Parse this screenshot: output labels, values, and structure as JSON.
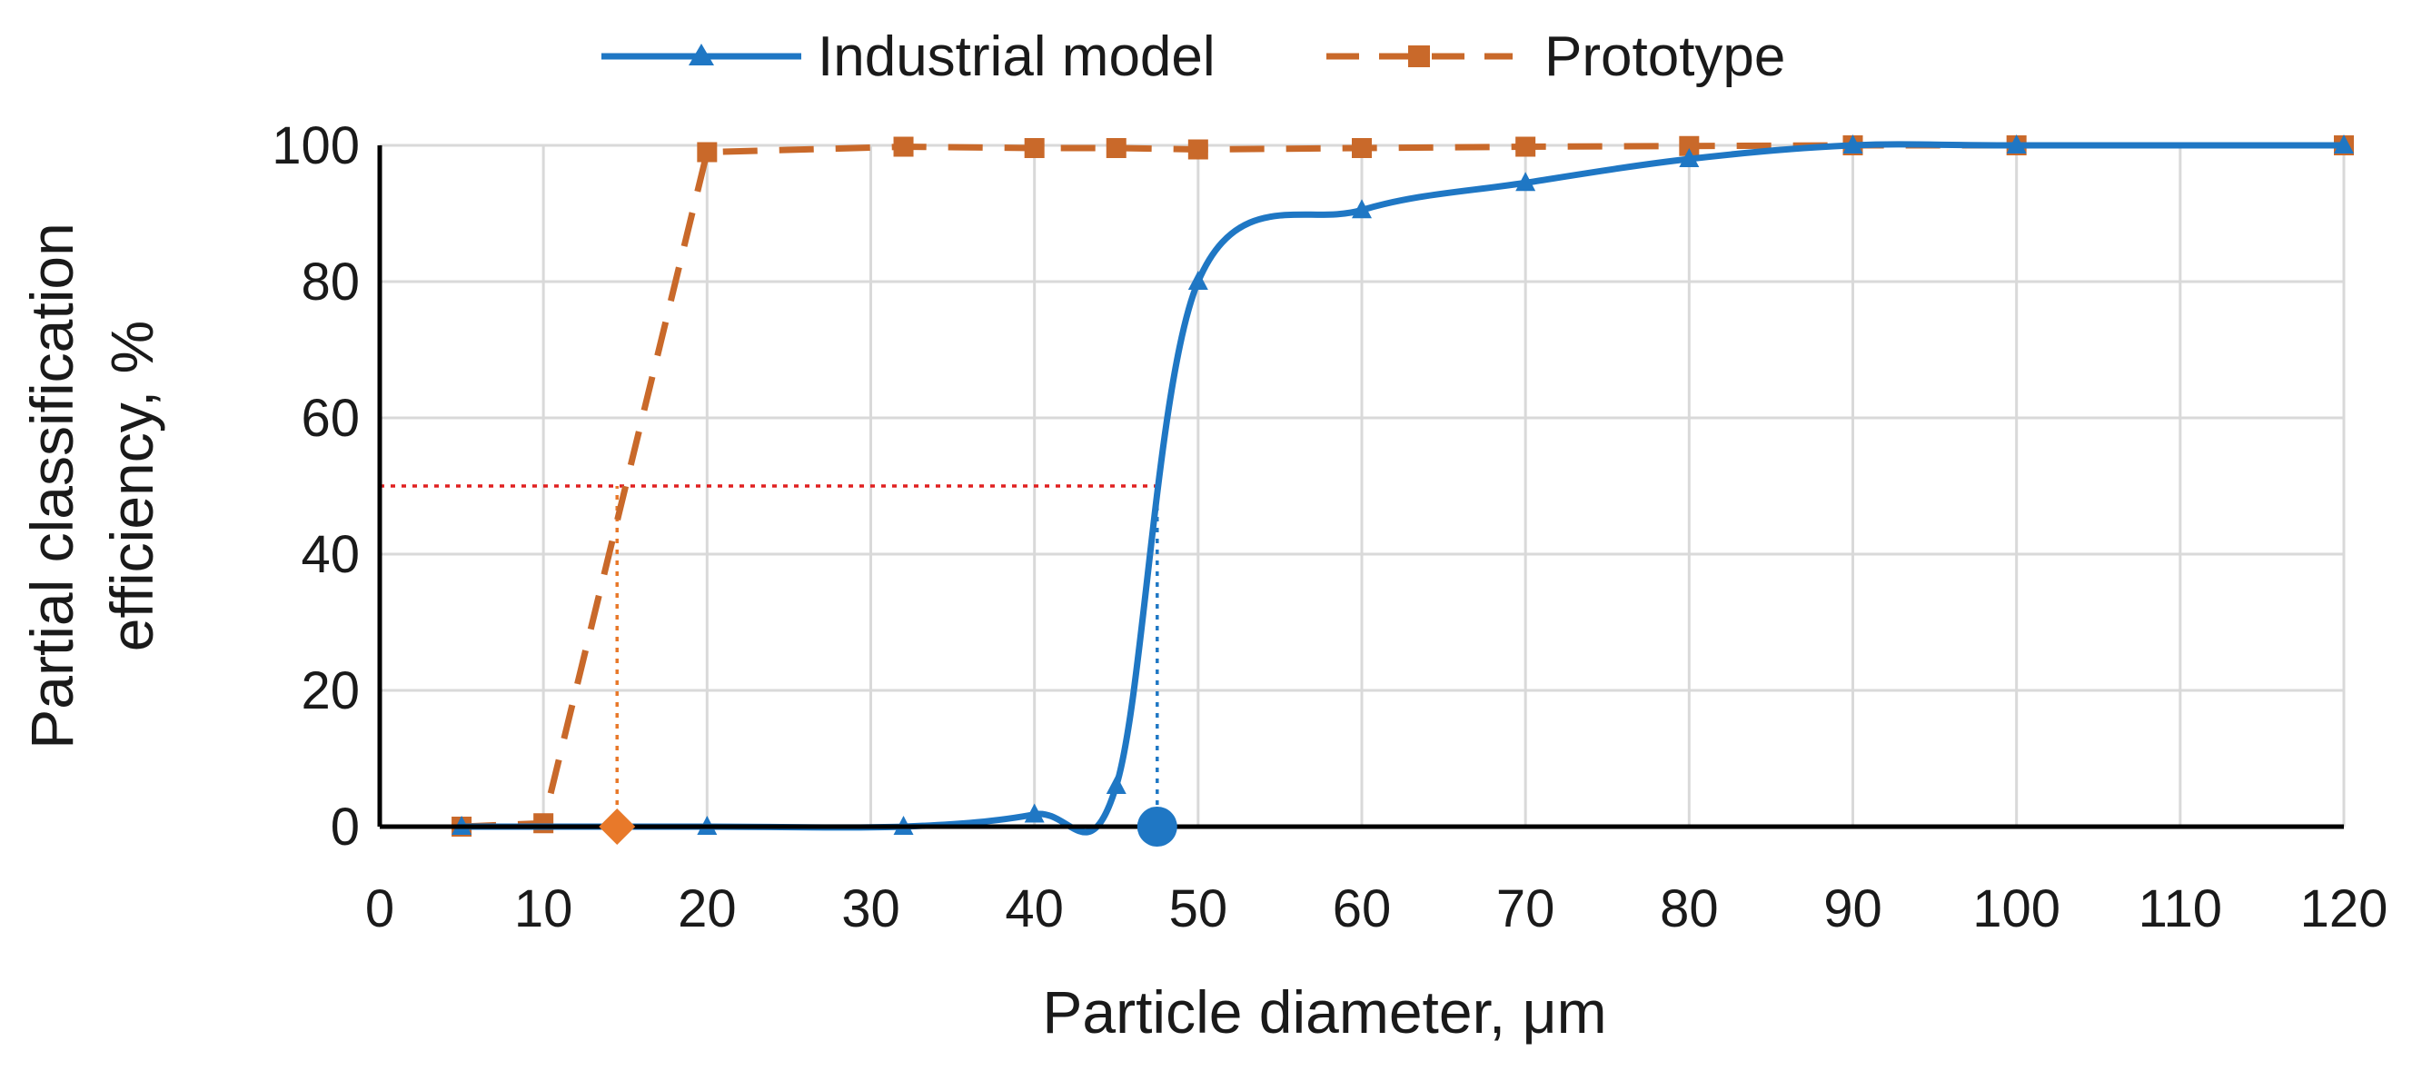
{
  "chart_data": {
    "type": "line",
    "title": "",
    "xlabel": "Particle diameter, μm",
    "ylabel": [
      "Partial classification",
      "efficiency, %"
    ],
    "xlim": [
      0,
      120
    ],
    "ylim": [
      0,
      100
    ],
    "xticks": [
      0,
      10,
      20,
      30,
      40,
      50,
      60,
      70,
      80,
      90,
      100,
      110,
      120
    ],
    "yticks": [
      0,
      20,
      40,
      60,
      80,
      100
    ],
    "grid": true,
    "legend_position": "top-center",
    "series": [
      {
        "name": "Industrial model",
        "color": "#1f77c4",
        "line_style": "solid",
        "marker": "triangle",
        "x": [
          5,
          20,
          32,
          40,
          45,
          50,
          60,
          70,
          80,
          90,
          100,
          120
        ],
        "y": [
          0,
          0,
          0,
          1.8,
          6,
          80,
          90.5,
          94.5,
          98,
          100,
          100,
          100
        ]
      },
      {
        "name": "Prototype",
        "color": "#c9692a",
        "line_style": "dashed",
        "marker": "square",
        "x": [
          5,
          10,
          20,
          32,
          40,
          45,
          50,
          60,
          70,
          80,
          90,
          100,
          120
        ],
        "y": [
          0,
          0.5,
          99,
          99.8,
          99.6,
          99.6,
          99.4,
          99.6,
          99.8,
          99.9,
          100,
          100,
          100
        ]
      }
    ],
    "annotations": [
      {
        "type": "hline",
        "y": 50,
        "x_from": 0,
        "x_to": 47.5,
        "color": "#e02020",
        "style": "dotted"
      },
      {
        "type": "vline",
        "x": 14.5,
        "y_from": 0,
        "y_to": 50,
        "color": "#e8792a",
        "style": "dotted"
      },
      {
        "type": "vline",
        "x": 47.5,
        "y_from": 0,
        "y_to": 50,
        "color": "#1f77c4",
        "style": "dotted"
      },
      {
        "type": "marker",
        "shape": "diamond",
        "x": 14.5,
        "y": 0,
        "color": "#e8792a"
      },
      {
        "type": "marker",
        "shape": "circle",
        "x": 47.5,
        "y": 0,
        "color": "#1f77c4"
      }
    ]
  }
}
